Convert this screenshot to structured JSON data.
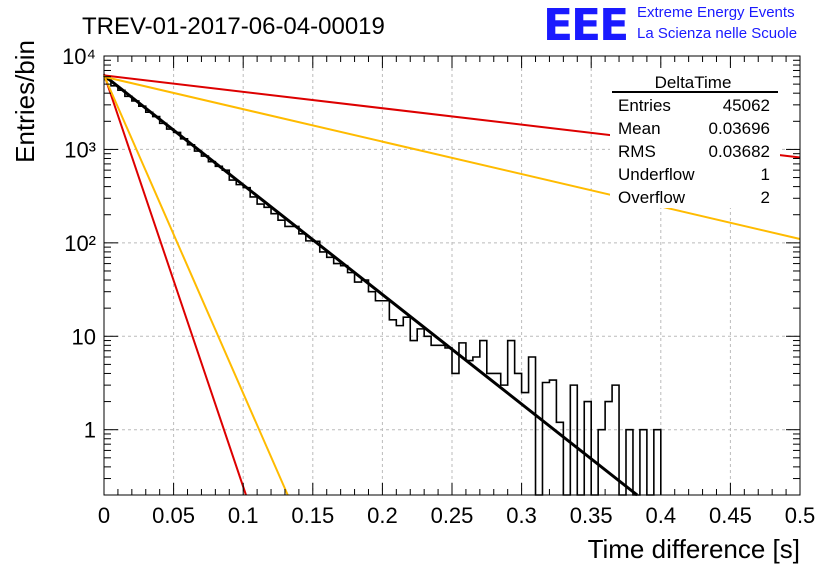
{
  "header": {
    "title": "TREV-01-2017-06-04-00019",
    "logo_text": "EEE",
    "org_line1": "Extreme Energy Events",
    "org_line2": "La Scienza nelle Scuole",
    "logo_color": "#1a1aff"
  },
  "stats": {
    "name": "DeltaTime",
    "rows": [
      {
        "label": "Entries",
        "value": "45062"
      },
      {
        "label": "Mean",
        "value": "0.03696"
      },
      {
        "label": "RMS",
        "value": "0.03682"
      },
      {
        "label": "Underflow",
        "value": "1"
      },
      {
        "label": "Overflow",
        "value": "2"
      }
    ]
  },
  "chart_data": {
    "type": "line",
    "xlabel": "Time difference [s]",
    "ylabel": "Entries/bin",
    "xlim": [
      0,
      0.5
    ],
    "ylim": [
      0.2,
      10000
    ],
    "log_y": true,
    "grid": true,
    "x_ticks": [
      0,
      0.05,
      0.1,
      0.15,
      0.2,
      0.25,
      0.3,
      0.35,
      0.4,
      0.45,
      0.5
    ],
    "x_tick_labels": [
      "0",
      "0.05",
      "0.1",
      "0.15",
      "0.2",
      "0.25",
      "0.3",
      "0.35",
      "0.4",
      "0.45",
      "0.5"
    ],
    "y_ticks": [
      1,
      10,
      100,
      1000,
      10000
    ],
    "y_tick_labels": [
      "1",
      "10",
      "10²",
      "10³",
      "10⁴"
    ],
    "histogram": {
      "bin_width": 0.005,
      "color": "#000000",
      "values": [
        5600,
        4800,
        4300,
        3700,
        3300,
        2900,
        2500,
        2250,
        1900,
        1650,
        1520,
        1300,
        1120,
        960,
        850,
        740,
        660,
        600,
        470,
        420,
        390,
        310,
        260,
        240,
        205,
        175,
        150,
        150,
        125,
        105,
        104,
        80,
        70,
        60,
        57,
        48,
        38,
        40,
        30,
        24,
        24,
        15,
        13,
        16,
        9,
        12,
        10,
        8,
        8,
        7.5,
        4,
        8.5,
        5.5,
        6,
        9,
        4,
        4,
        3,
        9,
        4,
        2.5,
        6,
        0.2,
        3.2,
        3.4,
        1.2,
        0.2,
        3,
        0.2,
        2,
        0.2,
        1,
        2,
        3,
        0.2,
        1,
        0.2,
        1,
        0.2,
        1
      ]
    },
    "lines": [
      {
        "color": "#000000",
        "x": [
          0,
          0.383
        ],
        "y": [
          6200,
          0.2
        ],
        "width": 3
      },
      {
        "color": "#dd0000",
        "x": [
          0,
          0.5
        ],
        "y": [
          6200,
          820
        ],
        "width": 2
      },
      {
        "color": "#ffbb00",
        "x": [
          0,
          0.5
        ],
        "y": [
          6000,
          110
        ],
        "width": 2
      },
      {
        "color": "#dd0000",
        "x": [
          0,
          0.102
        ],
        "y": [
          6400,
          0.2
        ],
        "width": 2
      },
      {
        "color": "#ffbb00",
        "x": [
          0,
          0.132
        ],
        "y": [
          6200,
          0.2
        ],
        "width": 2
      }
    ]
  }
}
